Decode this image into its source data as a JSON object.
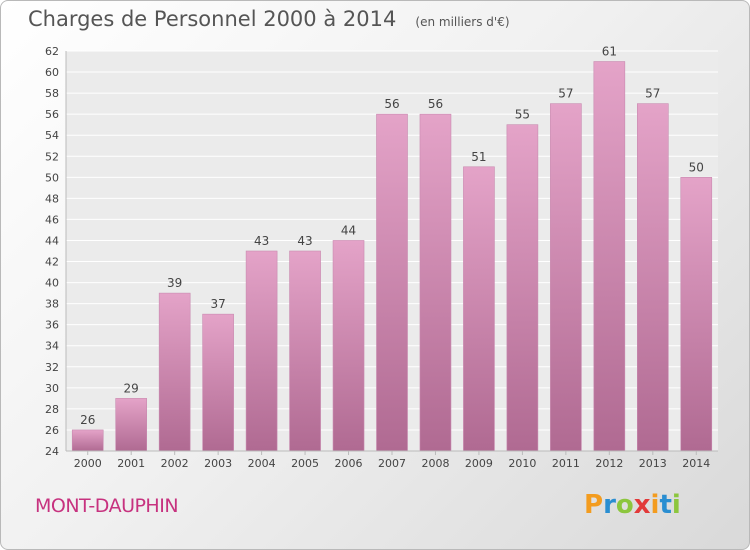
{
  "chart_data": {
    "type": "bar",
    "title": "Charges de Personnel 2000 à 2014",
    "subtitle": "(en milliers d'€)",
    "categories": [
      "2000",
      "2001",
      "2002",
      "2003",
      "2004",
      "2005",
      "2006",
      "2007",
      "2008",
      "2009",
      "2010",
      "2011",
      "2012",
      "2013",
      "2014"
    ],
    "values": [
      26,
      29,
      39,
      37,
      43,
      43,
      44,
      56,
      56,
      51,
      55,
      57,
      61,
      57,
      50
    ],
    "ylim": [
      24,
      62
    ],
    "yticks": [
      24,
      26,
      28,
      30,
      32,
      34,
      36,
      38,
      40,
      42,
      44,
      46,
      48,
      50,
      52,
      54,
      56,
      58,
      60,
      62
    ],
    "grid": true,
    "bar_color_top": "#e4a3c8",
    "bar_color_bottom": "#b06a92"
  },
  "footer": {
    "town": "MONT-DAUPHIN",
    "logo_letters": [
      "P",
      "r",
      "o",
      "x",
      "i",
      "t",
      "i"
    ],
    "logo_colors": [
      "#f39c1f",
      "#2a8ed1",
      "#8cc63e",
      "#e23a3a",
      "#f39c1f",
      "#2a8ed1",
      "#8cc63e"
    ]
  }
}
